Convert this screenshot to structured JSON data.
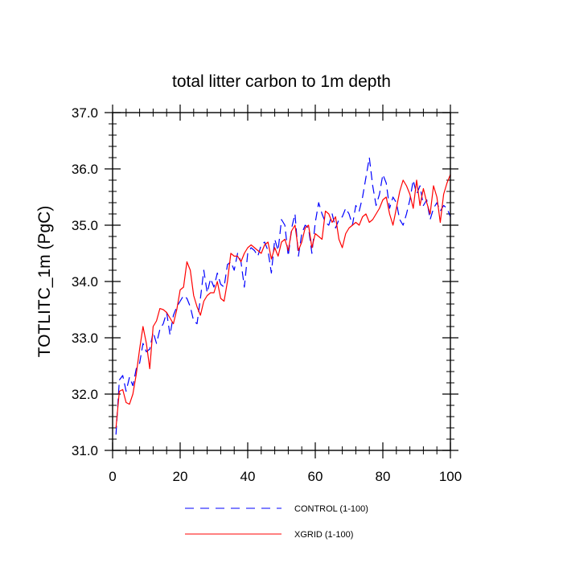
{
  "chart_data": {
    "type": "line",
    "title": "total litter carbon to 1m depth",
    "xlabel": "",
    "ylabel": "TOTLITC_1m  (PgC)",
    "xlim": [
      0,
      100
    ],
    "ylim": [
      31.0,
      37.0
    ],
    "xticks": [
      0,
      20,
      40,
      60,
      80,
      100
    ],
    "xtick_labels": [
      "0",
      "20",
      "40",
      "60",
      "80",
      "100"
    ],
    "yticks": [
      31.0,
      32.0,
      33.0,
      34.0,
      35.0,
      36.0,
      37.0
    ],
    "ytick_labels": [
      "31.0",
      "32.0",
      "33.0",
      "34.0",
      "35.0",
      "36.0",
      "37.0"
    ],
    "grid": false,
    "legend_position": "bottom-center",
    "series": [
      {
        "name": "CONTROL (1-100)",
        "color": "#0000ff",
        "dash": "dashed",
        "x": [
          1,
          2,
          3,
          4,
          5,
          6,
          7,
          8,
          9,
          10,
          11,
          12,
          13,
          14,
          15,
          16,
          17,
          18,
          19,
          20,
          21,
          22,
          23,
          24,
          25,
          26,
          27,
          28,
          29,
          30,
          31,
          32,
          33,
          34,
          35,
          36,
          37,
          38,
          39,
          40,
          41,
          42,
          43,
          44,
          45,
          46,
          47,
          48,
          49,
          50,
          51,
          52,
          53,
          54,
          55,
          56,
          57,
          58,
          59,
          60,
          61,
          62,
          63,
          64,
          65,
          66,
          67,
          68,
          69,
          70,
          71,
          72,
          73,
          74,
          75,
          76,
          77,
          78,
          79,
          80,
          81,
          82,
          83,
          84,
          85,
          86,
          87,
          88,
          89,
          90,
          91,
          92,
          93,
          94,
          95,
          96,
          97,
          98,
          99,
          100
        ],
        "y": [
          31.28,
          32.25,
          32.33,
          32.05,
          32.3,
          32.15,
          32.45,
          32.55,
          32.9,
          32.75,
          32.8,
          33.1,
          32.9,
          33.15,
          33.25,
          33.45,
          33.05,
          33.4,
          33.55,
          33.65,
          33.75,
          33.7,
          33.55,
          33.3,
          33.25,
          33.7,
          34.2,
          33.8,
          34.05,
          33.9,
          34.15,
          33.95,
          33.9,
          34.3,
          34.35,
          34.2,
          34.5,
          34.35,
          33.9,
          34.5,
          34.6,
          34.55,
          34.45,
          34.65,
          34.7,
          34.55,
          34.15,
          34.75,
          34.55,
          35.1,
          35.0,
          34.45,
          34.95,
          35.2,
          34.45,
          34.85,
          35.0,
          34.95,
          34.5,
          35.05,
          35.4,
          35.2,
          35.05,
          35.0,
          35.2,
          34.95,
          35.1,
          35.15,
          35.3,
          35.2,
          35.0,
          35.35,
          35.25,
          35.5,
          35.85,
          36.2,
          35.7,
          35.35,
          35.55,
          35.9,
          35.75,
          35.3,
          35.5,
          35.4,
          35.1,
          35.0,
          35.2,
          35.45,
          35.8,
          35.55,
          35.7,
          35.35,
          35.45,
          35.1,
          35.3,
          35.4,
          35.25,
          35.35,
          35.3,
          35.15
        ]
      },
      {
        "name": "XGRID (1-100)",
        "color": "#ff0000",
        "dash": "solid",
        "x": [
          1,
          2,
          3,
          4,
          5,
          6,
          7,
          8,
          9,
          10,
          11,
          12,
          13,
          14,
          15,
          16,
          17,
          18,
          19,
          20,
          21,
          22,
          23,
          24,
          25,
          26,
          27,
          28,
          29,
          30,
          31,
          32,
          33,
          34,
          35,
          36,
          37,
          38,
          39,
          40,
          41,
          42,
          43,
          44,
          45,
          46,
          47,
          48,
          49,
          50,
          51,
          52,
          53,
          54,
          55,
          56,
          57,
          58,
          59,
          60,
          61,
          62,
          63,
          64,
          65,
          66,
          67,
          68,
          69,
          70,
          71,
          72,
          73,
          74,
          75,
          76,
          77,
          78,
          79,
          80,
          81,
          82,
          83,
          84,
          85,
          86,
          87,
          88,
          89,
          90,
          91,
          92,
          93,
          94,
          95,
          96,
          97,
          98,
          99,
          100
        ],
        "y": [
          31.4,
          32.05,
          32.08,
          31.85,
          31.82,
          32.0,
          32.35,
          32.8,
          33.2,
          32.9,
          32.45,
          33.2,
          33.3,
          33.52,
          33.5,
          33.45,
          33.35,
          33.25,
          33.5,
          33.85,
          33.9,
          34.35,
          34.2,
          33.75,
          33.55,
          33.4,
          33.65,
          33.75,
          33.8,
          33.8,
          34.0,
          33.7,
          33.65,
          34.0,
          34.5,
          34.45,
          34.45,
          34.35,
          34.5,
          34.6,
          34.65,
          34.6,
          34.55,
          34.5,
          34.65,
          34.7,
          34.4,
          34.6,
          34.45,
          34.7,
          34.75,
          34.55,
          34.9,
          35.0,
          34.55,
          34.7,
          34.95,
          35.0,
          34.6,
          34.85,
          34.8,
          34.75,
          35.25,
          35.2,
          35.05,
          35.15,
          34.75,
          34.6,
          34.85,
          34.95,
          35.0,
          35.05,
          35.0,
          35.15,
          35.2,
          35.05,
          35.1,
          35.2,
          35.3,
          35.45,
          35.5,
          35.2,
          35.0,
          35.3,
          35.6,
          35.8,
          35.7,
          35.55,
          35.3,
          35.8,
          35.35,
          35.65,
          35.4,
          35.2,
          35.7,
          35.5,
          35.05,
          35.55,
          35.75,
          35.9
        ]
      }
    ]
  }
}
